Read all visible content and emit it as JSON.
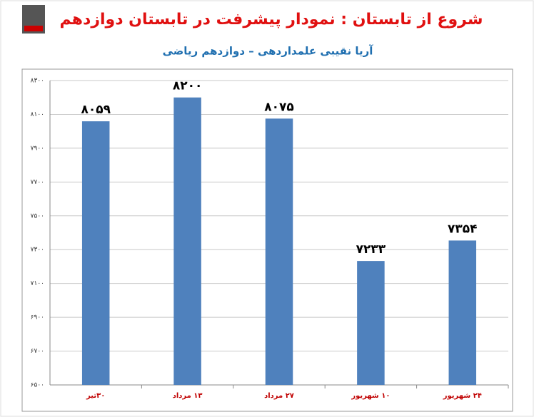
{
  "chart_data": {
    "type": "bar",
    "title": "شروع از تابستان : نمودار پیشرفت در تابستان دوازدهم",
    "subtitle": "آریا نقیبی علمداردهی – دوازدهم ریاضی",
    "categories": [
      "۳۰تیر",
      "۱۳ مرداد",
      "۲۷ مرداد",
      "۱۰ شهریور",
      "۲۴ شهریور"
    ],
    "values": [
      8059,
      8200,
      8075,
      7233,
      7354
    ],
    "value_labels": [
      "۸۰۵۹",
      "۸۲۰۰",
      "۸۰۷۵",
      "۷۲۳۳",
      "۷۳۵۴"
    ],
    "color": "#4f81bd",
    "ylim": [
      6500,
      8300
    ],
    "yticks": [
      {
        "value": 6500,
        "label": "۶۵۰۰"
      },
      {
        "value": 6700,
        "label": "۶۷۰۰"
      },
      {
        "value": 6900,
        "label": "۶۹۰۰"
      },
      {
        "value": 7100,
        "label": "۷۱۰۰"
      },
      {
        "value": 7300,
        "label": "۷۳۰۰"
      },
      {
        "value": 7500,
        "label": "۷۵۰۰"
      },
      {
        "value": 7700,
        "label": "۷۷۰۰"
      },
      {
        "value": 7900,
        "label": "۷۹۰۰"
      },
      {
        "value": 8100,
        "label": "۸۱۰۰"
      },
      {
        "value": 8300,
        "label": "۸۳۰۰"
      }
    ],
    "grid": true
  }
}
